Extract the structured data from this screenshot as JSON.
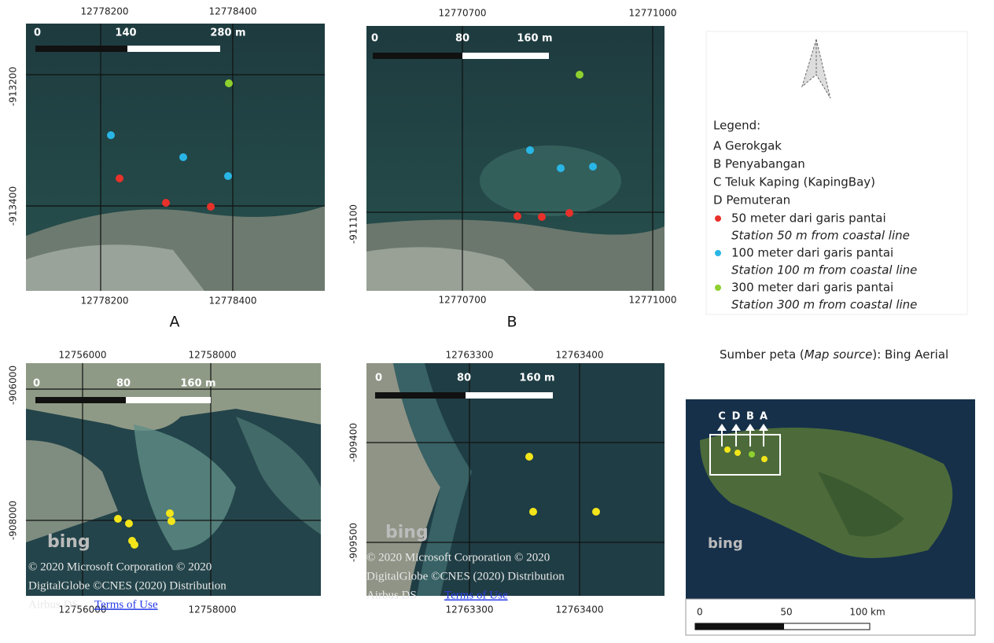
{
  "panels": [
    {
      "label": "A",
      "top_ticks": [
        "12778200",
        "12778400"
      ],
      "bottom_ticks": [
        "12778200",
        "12778400"
      ],
      "left_ticks": [
        "-913200",
        "-913400"
      ],
      "scale": [
        "0",
        "140",
        "280 m"
      ]
    },
    {
      "label": "B",
      "top_ticks": [
        "12770700",
        "12771000"
      ],
      "bottom_ticks": [
        "12770700",
        "12771000"
      ],
      "left_ticks": [
        "-911100"
      ],
      "scale": [
        "0",
        "80",
        "160 m"
      ]
    },
    {
      "top_ticks": [
        "12756000",
        "12758000"
      ],
      "bottom_ticks": [
        "12756000",
        "12758000"
      ],
      "left_ticks": [
        "-906000",
        "-908000"
      ],
      "scale": [
        "0",
        "80",
        "160 m"
      ],
      "watermark": {
        "logo": "bing",
        "lines": [
          "© 2020 Microsoft Corporation © 2020",
          "DigitalGlobe ©CNES (2020) Distribution",
          "Airbus DS"
        ],
        "link": "Terms of Use"
      }
    },
    {
      "top_ticks": [
        "12763300",
        "12763400"
      ],
      "bottom_ticks": [
        "12763300",
        "12763400"
      ],
      "left_ticks": [
        "-909400",
        "-909500"
      ],
      "scale": [
        "0",
        "80",
        "160 m"
      ],
      "watermark": {
        "logo": "bing",
        "lines": [
          "© 2020 Microsoft Corporation © 2020",
          "DigitalGlobe ©CNES (2020) Distribution",
          "Airbus DS"
        ],
        "link": "Terms of Use"
      }
    }
  ],
  "legend": {
    "title": "Legend:",
    "sites": [
      "A Gerokgak",
      "B Penyabangan",
      "C Teluk Kaping (KapingBay)",
      "D Pemuteran"
    ],
    "stations": [
      {
        "name": "50 meter dari garis pantai",
        "subtitle": "Station 50 m from coastal line",
        "color": "#e8312a"
      },
      {
        "name": "100 meter dari garis pantai",
        "subtitle": "Station 100 m from coastal line",
        "color": "#29b6e6"
      },
      {
        "name": "300 meter dari garis pantai",
        "subtitle": "Station 300 m from coastal line",
        "color": "#8ed12e"
      }
    ],
    "source": [
      "Sumber peta (",
      "Map source",
      "): Bing Aerial"
    ]
  },
  "inset": {
    "site_letters": [
      "C",
      "D",
      "B",
      "A"
    ],
    "logo": "bing",
    "scale": [
      "0",
      "50",
      "100 km"
    ]
  }
}
